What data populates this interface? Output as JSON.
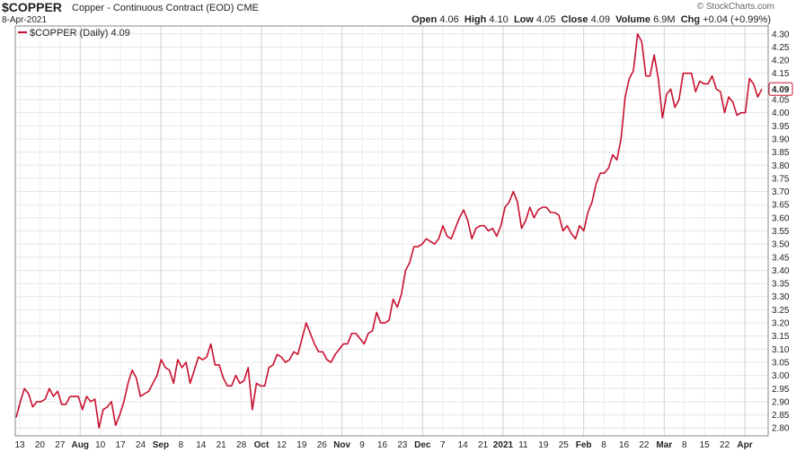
{
  "header": {
    "symbol": "$COPPER",
    "description": "Copper - Continuous Contract (EOD)",
    "exchange": "CME",
    "date": "8-Apr-2021",
    "watermark": "© StockCharts.com",
    "open_label": "Open",
    "open": "4.06",
    "high_label": "High",
    "high": "4.10",
    "low_label": "Low",
    "low": "4.05",
    "close_label": "Close",
    "close": "4.09",
    "volume_label": "Volume",
    "volume": "6.9M",
    "chg_label": "Chg",
    "chg": "+0.04 (+0.99%)"
  },
  "chart_data": {
    "type": "line",
    "legend": "$COPPER (Daily) 4.09",
    "last_value_label": "4.09",
    "line_color": "#c8102e",
    "grid": true,
    "ylim": [
      2.77,
      4.33
    ],
    "y_ticks": [
      "2.80",
      "2.85",
      "2.90",
      "2.95",
      "3.00",
      "3.05",
      "3.10",
      "3.15",
      "3.20",
      "3.25",
      "3.30",
      "3.35",
      "3.40",
      "3.45",
      "3.50",
      "3.55",
      "3.60",
      "3.65",
      "3.70",
      "3.75",
      "3.80",
      "3.85",
      "3.90",
      "3.95",
      "4.00",
      "4.05",
      "4.10",
      "4.15",
      "4.20",
      "4.25",
      "4.30"
    ],
    "x_ticks": [
      {
        "label": "13",
        "major": false
      },
      {
        "label": "20",
        "major": false
      },
      {
        "label": "27",
        "major": false
      },
      {
        "label": "Aug",
        "major": true
      },
      {
        "label": "10",
        "major": false
      },
      {
        "label": "17",
        "major": false
      },
      {
        "label": "24",
        "major": false
      },
      {
        "label": "Sep",
        "major": true
      },
      {
        "label": "8",
        "major": false
      },
      {
        "label": "14",
        "major": false
      },
      {
        "label": "21",
        "major": false
      },
      {
        "label": "28",
        "major": false
      },
      {
        "label": "Oct",
        "major": true
      },
      {
        "label": "12",
        "major": false
      },
      {
        "label": "19",
        "major": false
      },
      {
        "label": "26",
        "major": false
      },
      {
        "label": "Nov",
        "major": true
      },
      {
        "label": "9",
        "major": false
      },
      {
        "label": "16",
        "major": false
      },
      {
        "label": "23",
        "major": false
      },
      {
        "label": "Dec",
        "major": true
      },
      {
        "label": "7",
        "major": false
      },
      {
        "label": "14",
        "major": false
      },
      {
        "label": "21",
        "major": false
      },
      {
        "label": "2021",
        "major": true
      },
      {
        "label": "11",
        "major": false
      },
      {
        "label": "19",
        "major": false
      },
      {
        "label": "25",
        "major": false
      },
      {
        "label": "Feb",
        "major": true
      },
      {
        "label": "8",
        "major": false
      },
      {
        "label": "16",
        "major": false
      },
      {
        "label": "22",
        "major": false
      },
      {
        "label": "Mar",
        "major": true
      },
      {
        "label": "8",
        "major": false
      },
      {
        "label": "15",
        "major": false
      },
      {
        "label": "22",
        "major": false
      },
      {
        "label": "Apr",
        "major": true
      }
    ],
    "values": [
      2.84,
      2.9,
      2.95,
      2.93,
      2.88,
      2.9,
      2.9,
      2.91,
      2.95,
      2.92,
      2.94,
      2.89,
      2.89,
      2.92,
      2.92,
      2.92,
      2.87,
      2.92,
      2.9,
      2.91,
      2.8,
      2.87,
      2.88,
      2.9,
      2.81,
      2.85,
      2.9,
      2.97,
      3.02,
      2.99,
      2.92,
      2.93,
      2.94,
      2.97,
      3.0,
      3.06,
      3.03,
      3.02,
      2.97,
      3.06,
      3.03,
      3.05,
      2.97,
      3.02,
      3.07,
      3.06,
      3.07,
      3.12,
      3.04,
      3.04,
      2.99,
      2.96,
      2.96,
      3.0,
      2.97,
      2.98,
      3.03,
      2.87,
      2.97,
      2.96,
      2.96,
      3.03,
      3.04,
      3.08,
      3.07,
      3.05,
      3.06,
      3.09,
      3.08,
      3.14,
      3.2,
      3.16,
      3.12,
      3.09,
      3.09,
      3.06,
      3.05,
      3.08,
      3.1,
      3.12,
      3.12,
      3.16,
      3.16,
      3.14,
      3.12,
      3.16,
      3.17,
      3.24,
      3.2,
      3.2,
      3.21,
      3.29,
      3.26,
      3.31,
      3.4,
      3.43,
      3.49,
      3.49,
      3.5,
      3.52,
      3.51,
      3.5,
      3.52,
      3.57,
      3.53,
      3.52,
      3.56,
      3.6,
      3.63,
      3.59,
      3.52,
      3.56,
      3.57,
      3.57,
      3.55,
      3.56,
      3.53,
      3.57,
      3.64,
      3.66,
      3.7,
      3.66,
      3.56,
      3.59,
      3.64,
      3.6,
      3.63,
      3.64,
      3.64,
      3.62,
      3.62,
      3.61,
      3.55,
      3.57,
      3.54,
      3.52,
      3.57,
      3.55,
      3.62,
      3.66,
      3.73,
      3.77,
      3.77,
      3.79,
      3.84,
      3.82,
      3.9,
      4.06,
      4.13,
      4.16,
      4.3,
      4.27,
      4.14,
      4.14,
      4.22,
      4.13,
      3.98,
      4.07,
      4.09,
      4.02,
      4.05,
      4.15,
      4.15,
      4.15,
      4.08,
      4.12,
      4.11,
      4.11,
      4.14,
      4.09,
      4.08,
      4.0,
      4.06,
      4.04,
      3.99,
      4.0,
      4.0,
      4.13,
      4.11,
      4.06,
      4.09
    ]
  }
}
